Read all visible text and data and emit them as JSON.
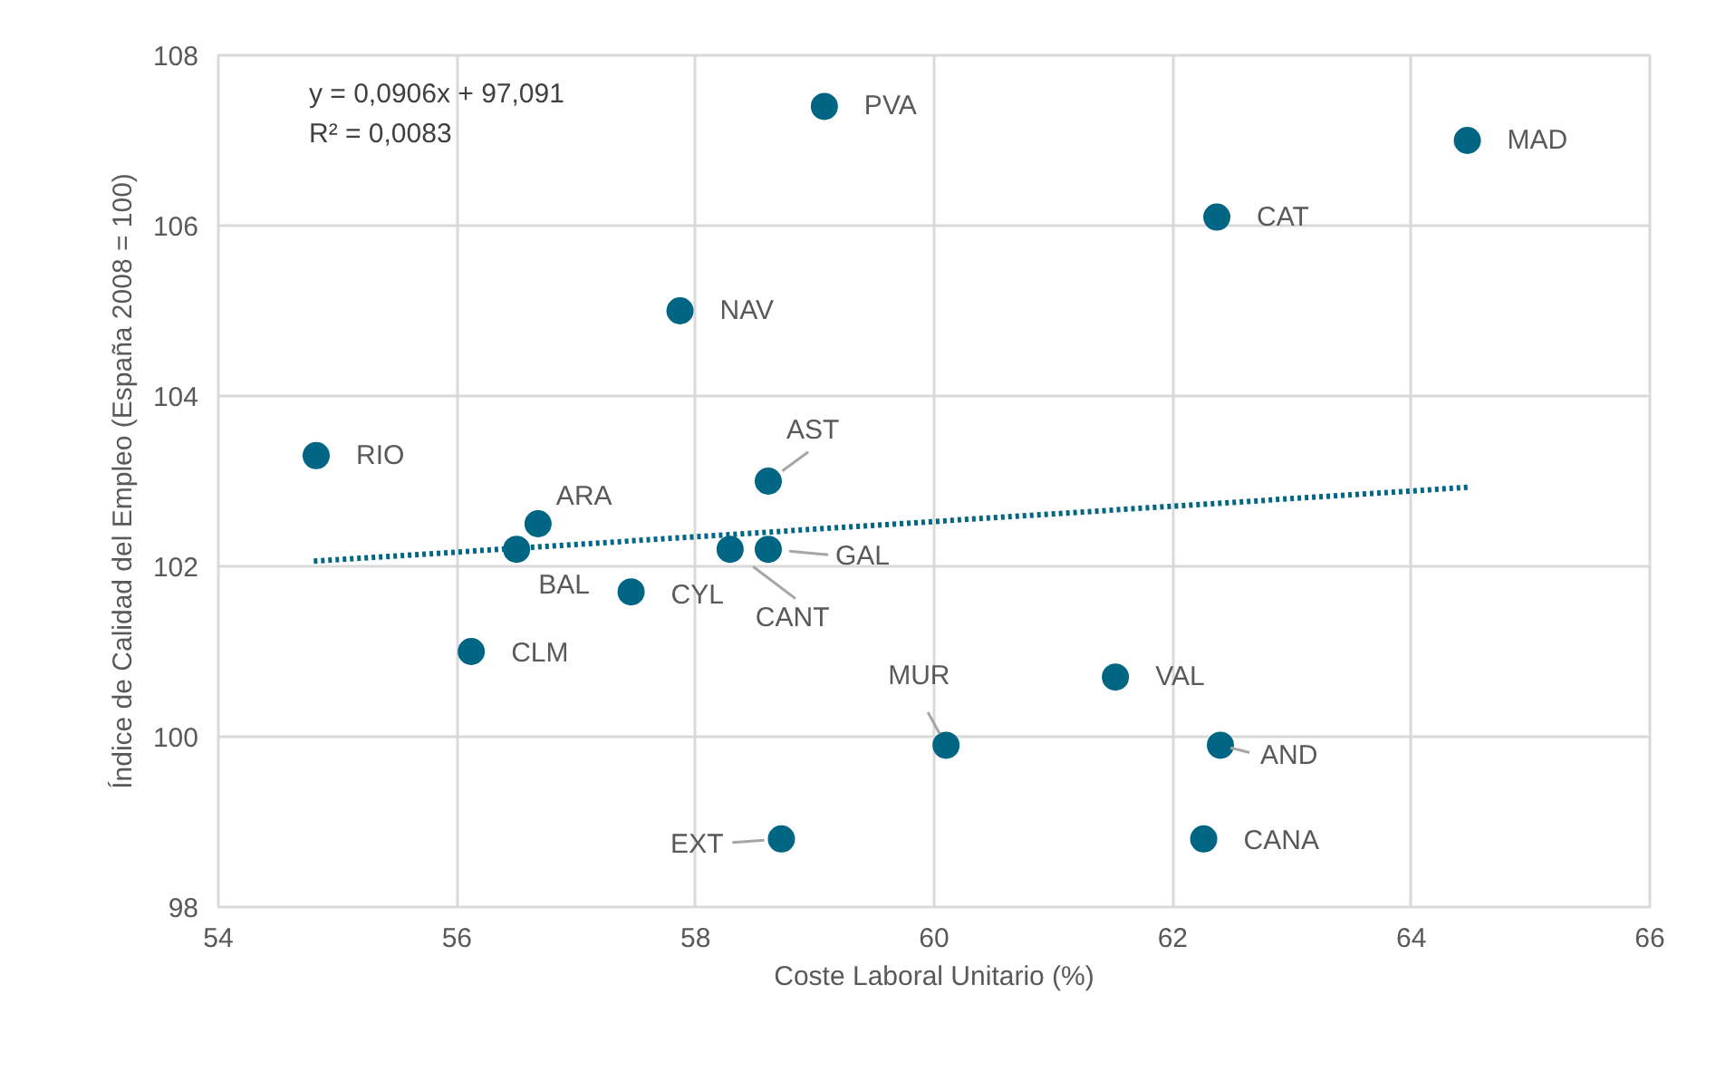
{
  "chart_data": {
    "type": "scatter",
    "xlabel": "Coste Laboral Unitario (%)",
    "ylabel": "Índice de Calidad del Empleo (España 2008 = 100)",
    "xlim": [
      54,
      66
    ],
    "ylim": [
      98,
      108
    ],
    "xticks": [
      54,
      56,
      58,
      60,
      62,
      64,
      66
    ],
    "yticks": [
      98,
      100,
      102,
      104,
      106,
      108
    ],
    "grid": true,
    "marker": "circle",
    "x": [
      59.08,
      64.47,
      62.37,
      57.87,
      54.82,
      58.61,
      56.68,
      56.5,
      58.29,
      58.61,
      57.46,
      56.12,
      61.52,
      60.1,
      62.4,
      58.72,
      62.26
    ],
    "series": [
      {
        "color": "#006683",
        "values": [
          107.4,
          107.0,
          106.1,
          105.0,
          103.3,
          103.0,
          102.5,
          102.2,
          102.2,
          102.2,
          101.7,
          101.0,
          100.7,
          99.9,
          99.9,
          98.8,
          98.8
        ]
      },
      {
        "type": "line",
        "line_style": "dotted",
        "marker": "none",
        "color": "#006683",
        "x": [
          54.8,
          64.5
        ],
        "values": [
          102.06,
          102.93
        ]
      }
    ],
    "annotations": [
      "y = 0,0906x + 97,091",
      "R² = 0,0083",
      {
        "text": "PVA",
        "x": 59.08,
        "y": 107.4
      },
      {
        "text": "MAD",
        "x": 64.47,
        "y": 107.0
      },
      {
        "text": "CAT",
        "x": 62.37,
        "y": 106.1
      },
      {
        "text": "NAV",
        "x": 57.87,
        "y": 105.0
      },
      {
        "text": "RIO",
        "x": 54.82,
        "y": 103.3
      },
      {
        "text": "AST",
        "x": 58.61,
        "y": 103.0
      },
      {
        "text": "ARA",
        "x": 56.68,
        "y": 102.5
      },
      {
        "text": "BAL",
        "x": 56.5,
        "y": 102.2
      },
      {
        "text": "CANT",
        "x": 58.29,
        "y": 102.2
      },
      {
        "text": "GAL",
        "x": 58.61,
        "y": 102.2
      },
      {
        "text": "CYL",
        "x": 57.46,
        "y": 101.7
      },
      {
        "text": "CLM",
        "x": 56.12,
        "y": 101.0
      },
      {
        "text": "VAL",
        "x": 61.52,
        "y": 100.7
      },
      {
        "text": "MUR",
        "x": 60.1,
        "y": 99.9
      },
      {
        "text": "AND",
        "x": 62.4,
        "y": 99.9
      },
      {
        "text": "EXT",
        "x": 58.72,
        "y": 98.8
      },
      {
        "text": "CANA",
        "x": 62.26,
        "y": 98.8
      }
    ]
  }
}
